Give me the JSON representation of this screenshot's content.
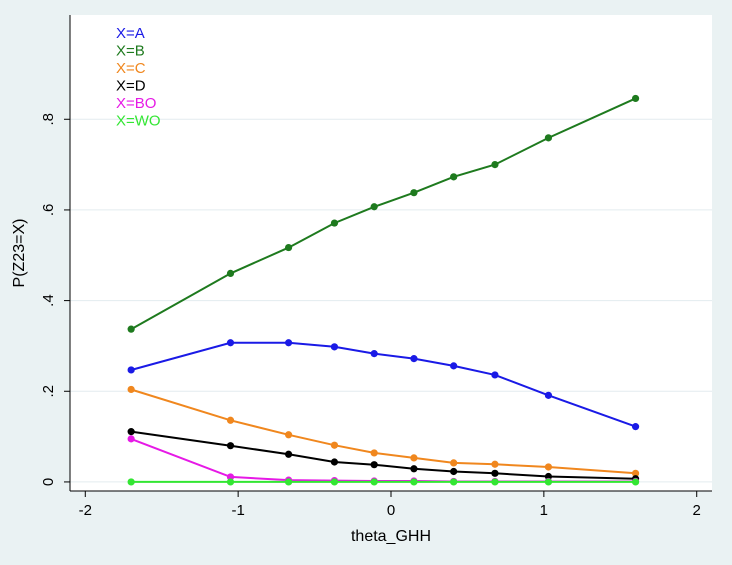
{
  "chart_data": {
    "type": "line",
    "title": "",
    "xlabel": "theta_GHH",
    "ylabel": "P(Z23=X)",
    "xlim": [
      -2.1,
      2.1
    ],
    "ylim": [
      -0.02,
      1.03
    ],
    "xticks": [
      -2,
      -1,
      0,
      1,
      2
    ],
    "xtick_labels": [
      "-2",
      "-1",
      "0",
      "1",
      "2"
    ],
    "yticks": [
      0,
      0.2,
      0.4,
      0.6,
      0.8
    ],
    "ytick_labels": [
      "0",
      ".2",
      ".4",
      ".6",
      ".8"
    ],
    "grid": "horizontal",
    "legend_position": "top-left",
    "x": [
      -1.7,
      -1.05,
      -0.67,
      -0.37,
      -0.11,
      0.15,
      0.41,
      0.68,
      1.03,
      1.6
    ],
    "series": [
      {
        "name": "X=A",
        "color": "#1A1AE6",
        "values": [
          0.247,
          0.307,
          0.307,
          0.298,
          0.283,
          0.272,
          0.256,
          0.236,
          0.191,
          0.122
        ]
      },
      {
        "name": "X=B",
        "color": "#1E7A1E",
        "values": [
          0.337,
          0.46,
          0.517,
          0.571,
          0.607,
          0.638,
          0.673,
          0.7,
          0.759,
          0.846
        ]
      },
      {
        "name": "X=C",
        "color": "#F0871E",
        "values": [
          0.204,
          0.136,
          0.104,
          0.081,
          0.064,
          0.053,
          0.042,
          0.039,
          0.033,
          0.019
        ]
      },
      {
        "name": "X=D",
        "color": "#000000",
        "values": [
          0.111,
          0.08,
          0.061,
          0.044,
          0.038,
          0.029,
          0.023,
          0.019,
          0.012,
          0.007
        ]
      },
      {
        "name": "X=BO",
        "color": "#E619E6",
        "values": [
          0.095,
          0.011,
          0.004,
          0.003,
          0.002,
          0.002,
          0.001,
          0.001,
          0.001,
          0.001
        ]
      },
      {
        "name": "X=WO",
        "color": "#33E633",
        "values": [
          0.0,
          0.0,
          0.0,
          0.0,
          0.0,
          0.0,
          0.0,
          0.0,
          0.0,
          0.0
        ]
      }
    ]
  }
}
